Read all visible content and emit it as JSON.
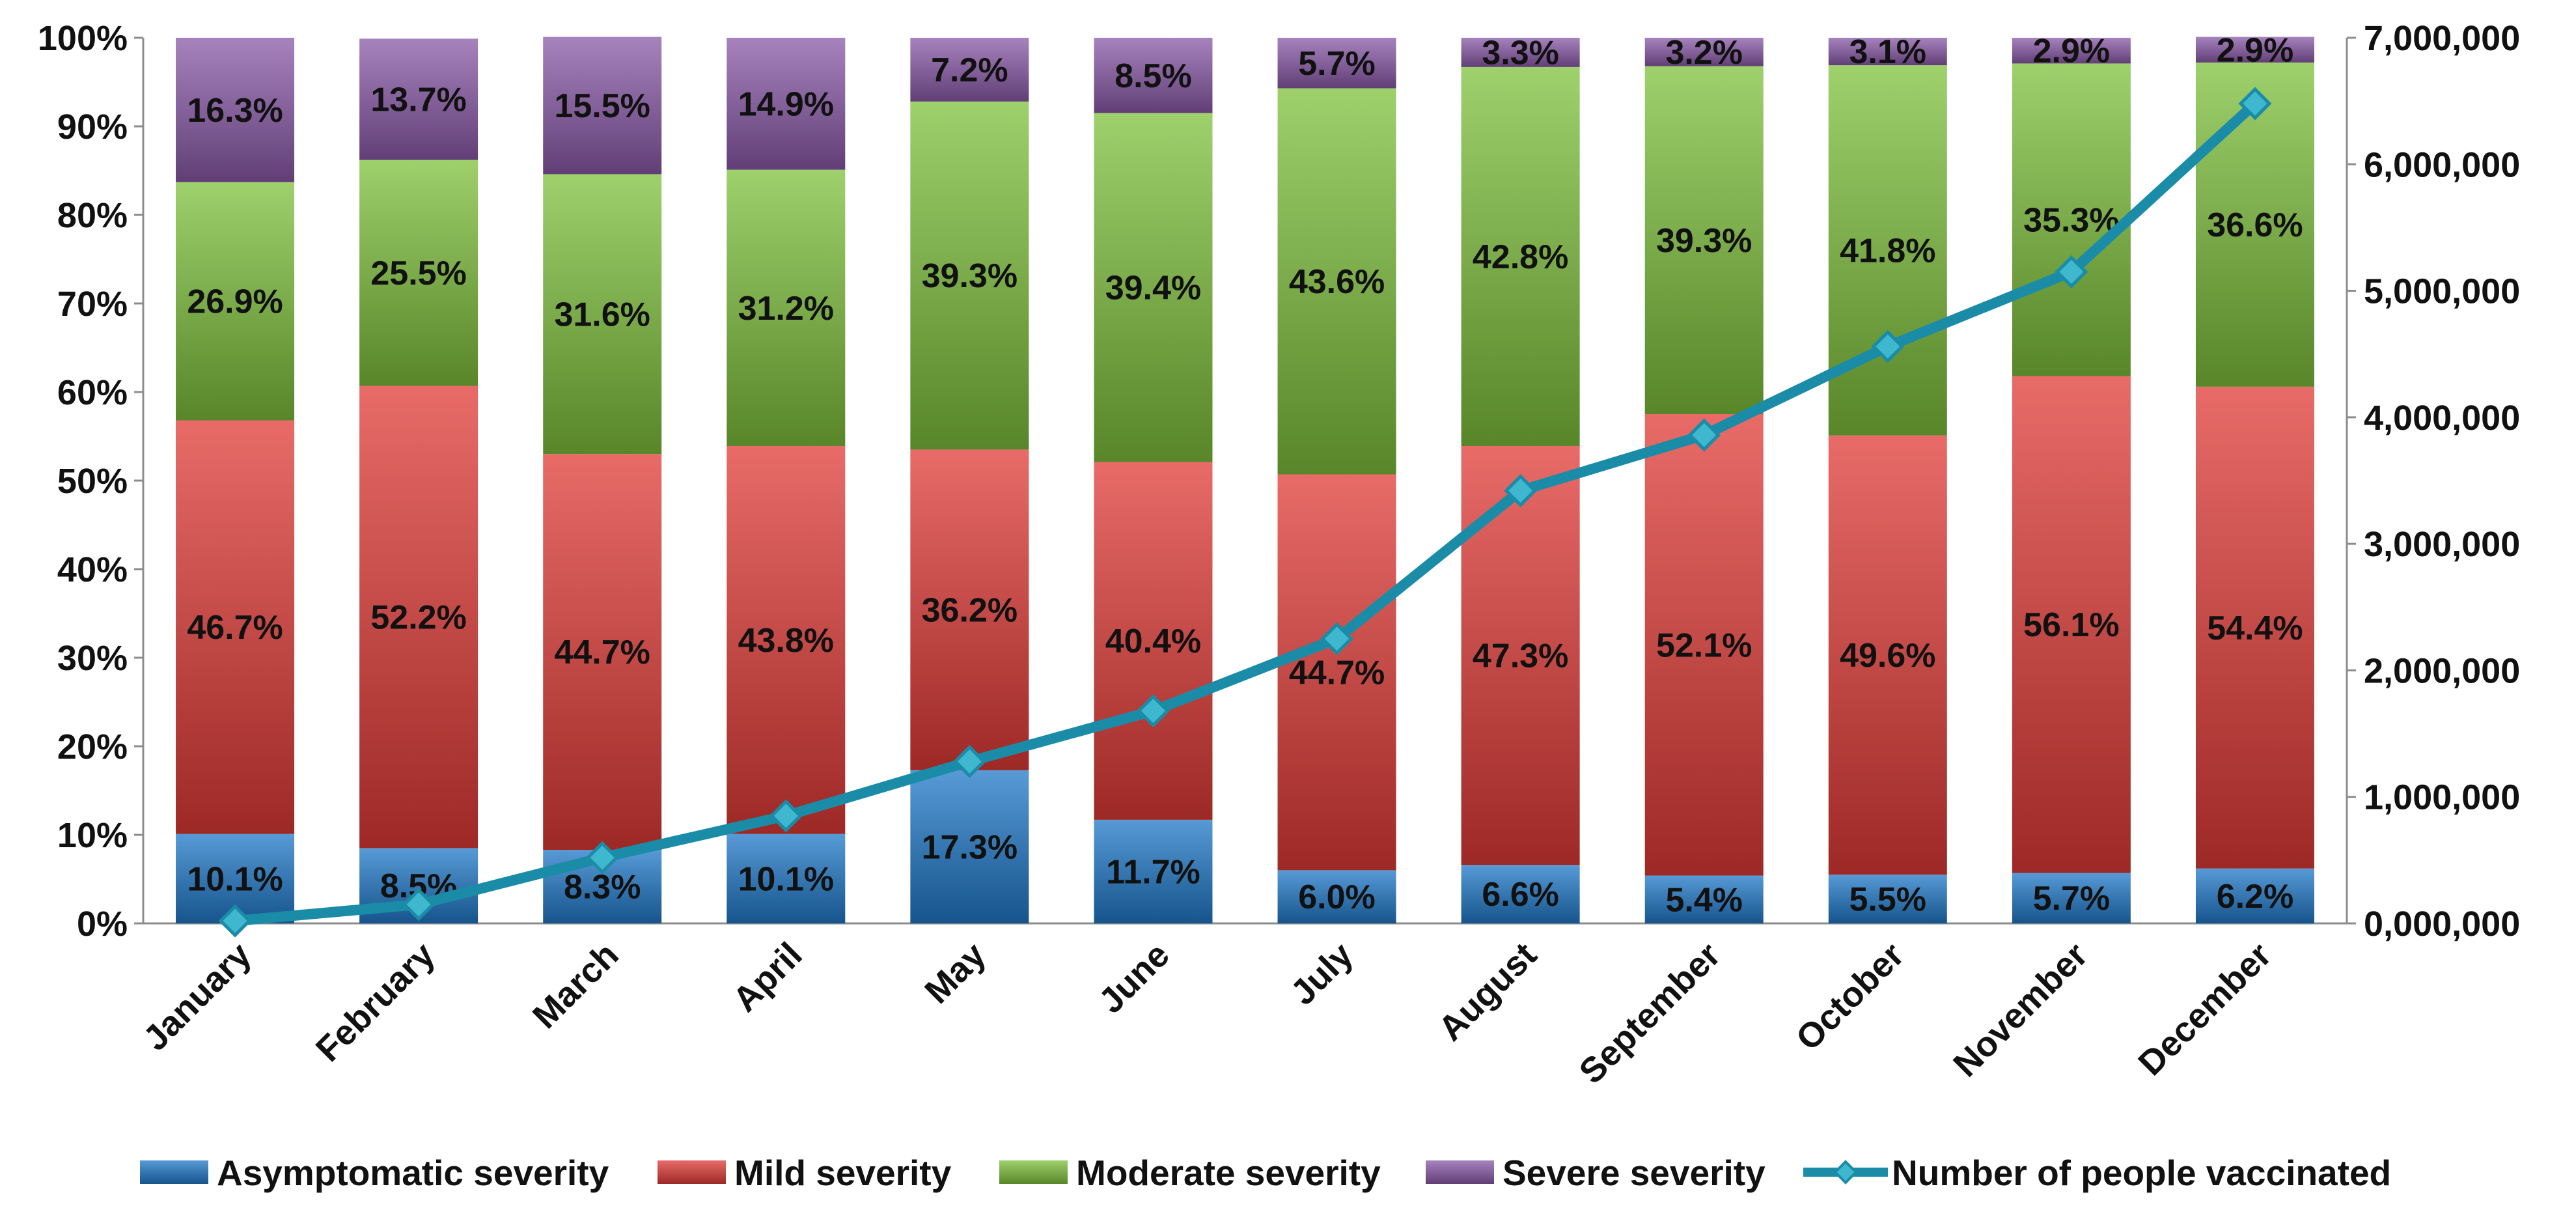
{
  "chart_data": {
    "type": "bar",
    "stacked": true,
    "categories": [
      "January",
      "February",
      "March",
      "April",
      "May",
      "June",
      "July",
      "August",
      "September",
      "October",
      "November",
      "December"
    ],
    "series": [
      {
        "name": "Asymptomatic severity",
        "color": "#1f78c8",
        "values": [
          10.1,
          8.5,
          8.3,
          10.1,
          17.3,
          11.7,
          6.0,
          6.6,
          5.4,
          5.5,
          5.7,
          6.2
        ],
        "labels": [
          "10.1%",
          "8.5%",
          "8.3%",
          "10.1%",
          "17.3%",
          "11.7%",
          "6.0%",
          "6.6%",
          "5.4%",
          "5.5%",
          "5.7%",
          "6.2%"
        ]
      },
      {
        "name": "Mild severity",
        "color": "#e03a36",
        "values": [
          46.7,
          52.2,
          44.7,
          43.8,
          36.2,
          40.4,
          44.7,
          47.3,
          52.1,
          49.6,
          56.1,
          54.4
        ],
        "labels": [
          "46.7%",
          "52.2%",
          "44.7%",
          "43.8%",
          "36.2%",
          "40.4%",
          "44.7%",
          "47.3%",
          "52.1%",
          "49.6%",
          "56.1%",
          "54.4%"
        ]
      },
      {
        "name": "Moderate severity",
        "color": "#7ec03b",
        "values": [
          26.9,
          25.5,
          31.6,
          31.2,
          39.3,
          39.4,
          43.6,
          42.8,
          39.3,
          41.8,
          35.3,
          36.6
        ],
        "labels": [
          "26.9%",
          "25.5%",
          "31.6%",
          "31.2%",
          "39.3%",
          "39.4%",
          "43.6%",
          "42.8%",
          "39.3%",
          "41.8%",
          "35.3%",
          "36.6%"
        ]
      },
      {
        "name": "Severe severity",
        "color": "#8a5aa8",
        "values": [
          16.3,
          13.7,
          15.5,
          14.9,
          7.2,
          8.5,
          5.7,
          3.3,
          3.2,
          3.1,
          2.9,
          2.9
        ],
        "labels": [
          "16.3%",
          "13.7%",
          "15.5%",
          "14.9%",
          "7.2%",
          "8.5%",
          "5.7%",
          "3.3%",
          "3.2%",
          "3.1%",
          "2.9%",
          "2.9%"
        ]
      }
    ],
    "line_series": {
      "name": "Number of people vaccinated",
      "color": "#1a8ca8",
      "axis": "right",
      "values": [
        20000,
        150000,
        520000,
        850000,
        1280000,
        1680000,
        2250000,
        3420000,
        3860000,
        4560000,
        5150000,
        6480000
      ]
    },
    "y_left": {
      "ylim": [
        0,
        100
      ],
      "ticks": [
        "0%",
        "10%",
        "20%",
        "30%",
        "40%",
        "50%",
        "60%",
        "70%",
        "80%",
        "90%",
        "100%"
      ]
    },
    "y_right": {
      "ylim": [
        0,
        7000000
      ],
      "ticks": [
        "0,000,000",
        "1,000,000",
        "2,000,000",
        "3,000,000",
        "4,000,000",
        "5,000,000",
        "6,000,000",
        "7,000,000"
      ]
    },
    "legend": {
      "position": "bottom",
      "items": [
        "Asymptomatic severity",
        "Mild severity",
        "Moderate severity",
        "Severe severity",
        "Number of people vaccinated"
      ]
    },
    "title": "",
    "xlabel": "",
    "ylabel": "",
    "grid": false
  }
}
